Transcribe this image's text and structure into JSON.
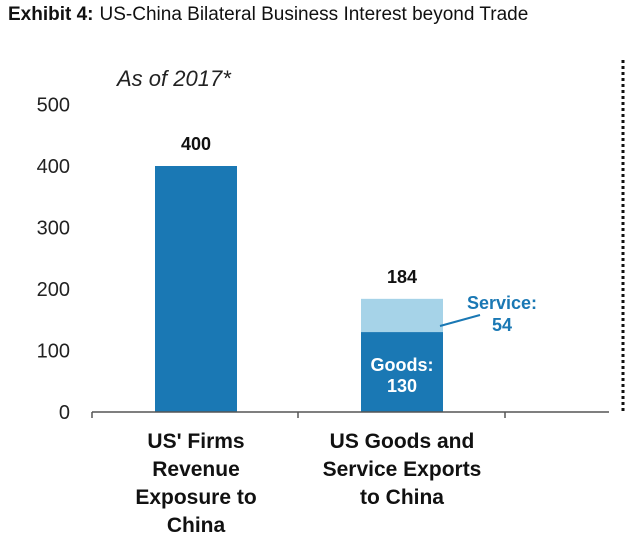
{
  "exhibit": {
    "label": "Exhibit 4:",
    "title": "US-China Bilateral Business Interest beyond Trade"
  },
  "colors": {
    "primary_bar": "#1a78b4",
    "service_segment": "#a6d3e8",
    "service_label": "#1a78b4",
    "axis": "#555555",
    "divider": "#111111"
  },
  "chart_data": {
    "type": "bar",
    "stacked": true,
    "annotation": "As of 2017*",
    "ylim": [
      0,
      500
    ],
    "yticks": [
      0,
      100,
      200,
      300,
      400,
      500
    ],
    "grid": false,
    "categories": [
      [
        "US' Firms",
        "Revenue",
        "Exposure to",
        "China"
      ],
      [
        "US Goods and",
        "Service Exports",
        "to China"
      ]
    ],
    "series": [
      {
        "name": "Goods",
        "values": [
          400,
          130
        ],
        "segment_labels": [
          "",
          "Goods:\n130"
        ]
      },
      {
        "name": "Service",
        "values": [
          0,
          54
        ],
        "segment_labels": [
          "",
          "Service:\n54"
        ]
      }
    ],
    "totals": [
      400,
      184
    ]
  }
}
